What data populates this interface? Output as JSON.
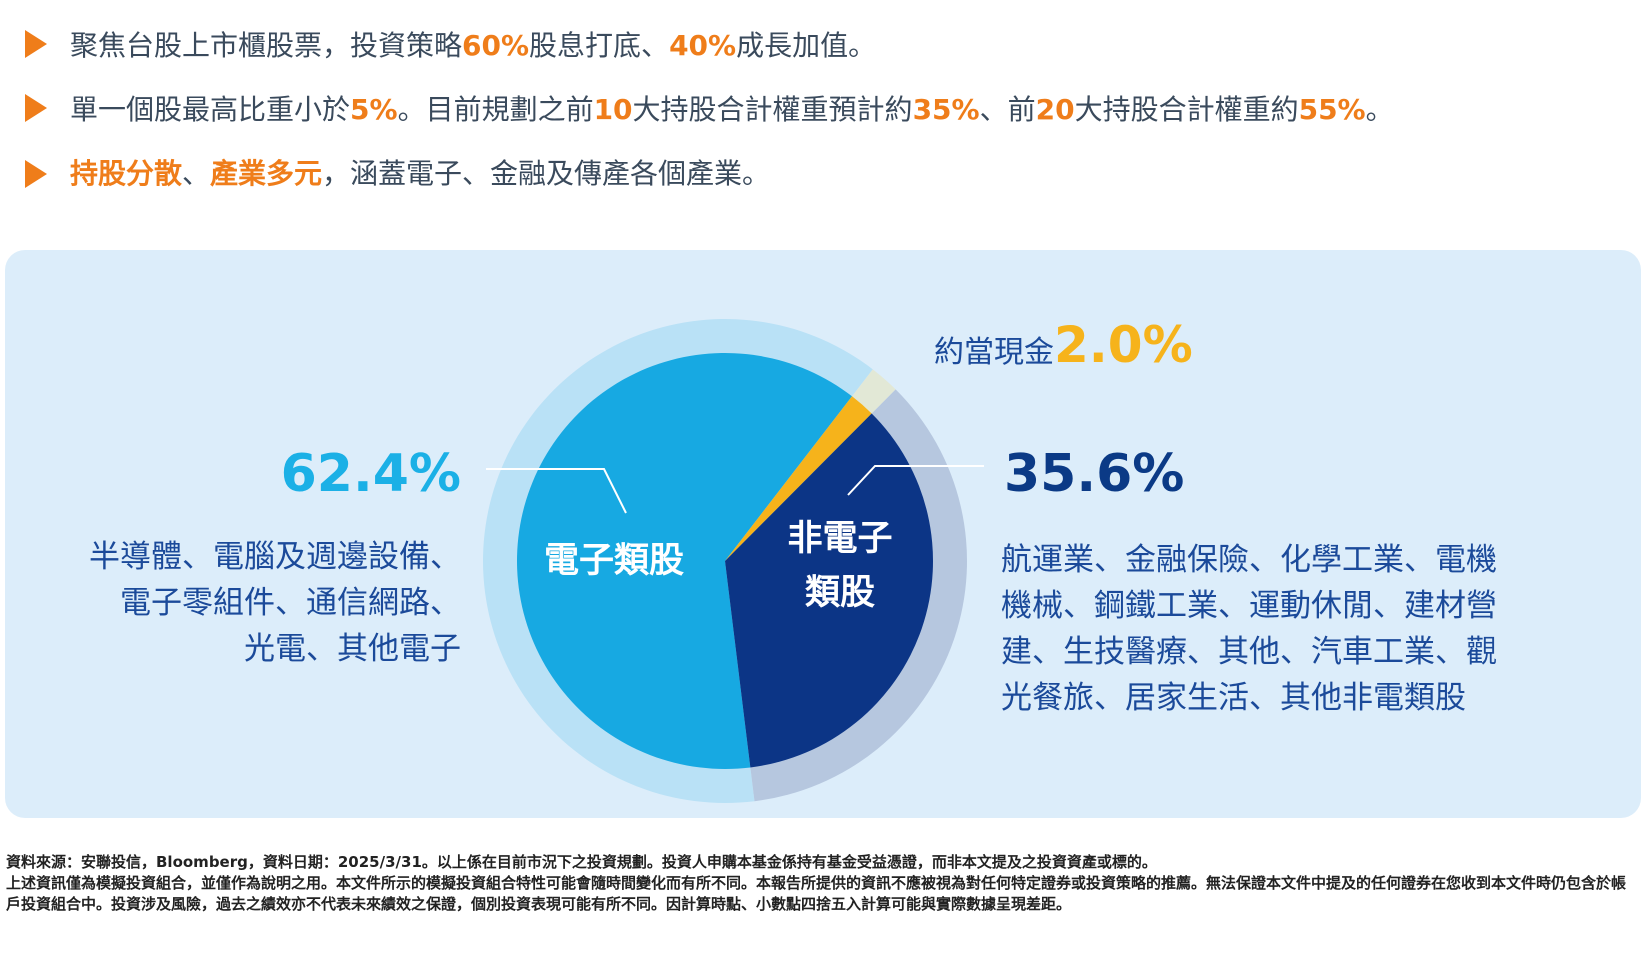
{
  "bullets": [
    [
      {
        "text": "聚焦台股上市櫃股票，投資策略"
      },
      {
        "text": "60%",
        "color": "#ef7d1a"
      },
      {
        "text": "股息打底、"
      },
      {
        "text": "40%",
        "color": "#ef7d1a"
      },
      {
        "text": "成長加值。"
      }
    ],
    [
      {
        "text": "單一個股最高比重小於"
      },
      {
        "text": "5%",
        "color": "#ef7d1a"
      },
      {
        "text": "。目前規劃之前"
      },
      {
        "text": "10",
        "color": "#ef7d1a"
      },
      {
        "text": "大持股合計權重預計約"
      },
      {
        "text": "35%",
        "color": "#ef7d1a"
      },
      {
        "text": "、前"
      },
      {
        "text": "20",
        "color": "#ef7d1a"
      },
      {
        "text": "大持股合計權重約"
      },
      {
        "text": "55%",
        "color": "#ef7d1a"
      },
      {
        "text": "。"
      }
    ],
    [
      {
        "text": "持股分散",
        "color": "#ef7d1a"
      },
      {
        "text": "、"
      },
      {
        "text": "產業多元",
        "color": "#ef7d1a"
      },
      {
        "text": "，涵蓋電子、金融及傳產各個產業。"
      }
    ]
  ],
  "chart_data": {
    "type": "pie",
    "categories": [
      "電子類股",
      "約當現金",
      "非電子類股"
    ],
    "values": [
      62.4,
      2.0,
      35.6
    ],
    "value_labels": [
      "62.4%",
      "2.0%",
      "35.6%"
    ],
    "colors": [
      "#17a9e2",
      "#f6b31b",
      "#0c3586"
    ],
    "ring_colors": [
      "#b9e1f6",
      "#e2e8d6",
      "#b6c7df"
    ],
    "descriptions": {
      "electronics": [
        "半導體、電腦及週邊設備、",
        "電子零組件、通信網路、",
        "光電、其他電子"
      ],
      "non_electronics": [
        "航運業、金融保險、化學工業、電機",
        "機械、鋼鐵工業、運動休閒、建材營",
        "建、生技醫療、其他、汽車工業、觀",
        "光餐旅、居家生活、其他非電類股"
      ]
    }
  },
  "footer": {
    "source": "資料來源：安聯投信，Bloomberg，資料日期：2025/3/31。以上係在目前市況下之投資規劃。投資人申購本基金係持有基金受益憑證，而非本文提及之投資資產或標的。",
    "disclaimer": "上述資訊僅為模擬投資組合，並僅作為說明之用。本文件所示的模擬投資組合特性可能會隨時間變化而有所不同。本報告所提供的資訊不應被視為對任何特定證券或投資策略的推薦。無法保證本文件中提及的任何證券在您收到本文件時仍包含於帳戶投資組合中。投資涉及風險，過去之績效亦不代表未來績效之保證，個別投資表現可能有所不同。因計算時點、小數點四捨五入計算可能與實際數據呈現差距。"
  }
}
